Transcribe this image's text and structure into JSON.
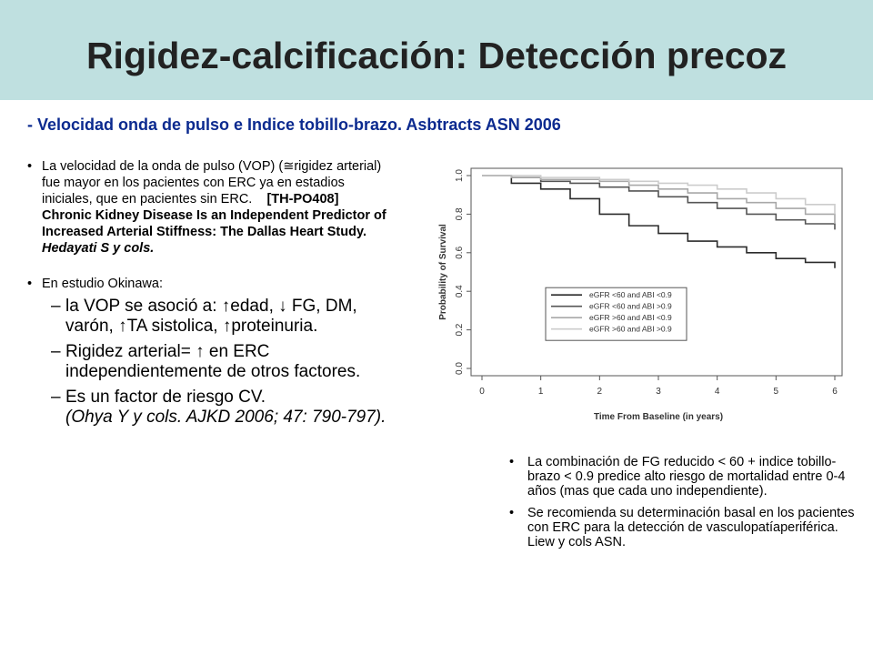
{
  "slide": {
    "title": "Rigidez-calcificación: Detección precoz",
    "subtitle": "- Velocidad onda de pulso e Indice tobillo-brazo. Asbtracts ASN 2006"
  },
  "left": {
    "bullet1": {
      "text": "La velocidad de la onda de pulso (VOP) (≅rigidez arterial) fue mayor en los pacientes con ERC ya en estadios iniciales, que en pacientes sin ERC.",
      "ref": "[TH-PO408] Chronic Kidney Disease Is an Independent Predictor of Increased Arterial Stiffness: The Dallas Heart Study.",
      "authors": "Hedayati S y cols."
    },
    "bullet2": {
      "text": "En estudio Okinawa:",
      "items": [
        "la VOP se asoció a: ↑edad, ↓ FG, DM, varón, ↑TA sistolica, ↑proteinuria.",
        "Rigidez arterial= ↑ en ERC independientemente de otros factores.",
        "Es un factor de riesgo CV.",
        "(Ohya Y y cols. AJKD 2006; 47: 790-797)."
      ],
      "dash": "–"
    }
  },
  "right": {
    "bullets": [
      "La combinación de FG reducido < 60 + indice tobillo-brazo < 0.9 predice alto riesgo de mortalidad entre 0-4 años (mas que cada uno independiente).",
      "Se recomienda su determinación basal en los pacientes con ERC para la detección de vasculopatíaperiférica. Liew y cols ASN."
    ]
  },
  "chart_data": {
    "type": "line",
    "xlabel": "Time From Baseline (in years)",
    "ylabel": "Probability of Survival",
    "xlim": [
      0,
      6
    ],
    "ylim": [
      0,
      1.0
    ],
    "x_ticks": [
      "0",
      "1",
      "2",
      "3",
      "4",
      "5",
      "6"
    ],
    "y_ticks": [
      "0.0",
      "0.2",
      "0.4",
      "0.6",
      "0.8",
      "1.0"
    ],
    "legend_position": "center-right",
    "series": [
      {
        "name": "eGFR <60 and ABI <0.9",
        "color": "#2b2b2b",
        "x": [
          0,
          0.5,
          1,
          1.5,
          2,
          2.5,
          3,
          3.5,
          4,
          4.5,
          5,
          5.5,
          6
        ],
        "y": [
          1.0,
          0.96,
          0.93,
          0.88,
          0.8,
          0.74,
          0.7,
          0.66,
          0.63,
          0.6,
          0.57,
          0.55,
          0.52
        ]
      },
      {
        "name": "eGFR <60 and ABI >0.9",
        "color": "#555555",
        "x": [
          0,
          0.5,
          1,
          1.5,
          2,
          2.5,
          3,
          3.5,
          4,
          4.5,
          5,
          5.5,
          6
        ],
        "y": [
          1.0,
          0.99,
          0.97,
          0.96,
          0.94,
          0.92,
          0.89,
          0.86,
          0.83,
          0.8,
          0.77,
          0.75,
          0.72
        ]
      },
      {
        "name": "eGFR >60 and ABI <0.9",
        "color": "#a8a8a8",
        "x": [
          0,
          0.5,
          1,
          1.5,
          2,
          2.5,
          3,
          3.5,
          4,
          4.5,
          5,
          5.5,
          6
        ],
        "y": [
          1.0,
          0.99,
          0.98,
          0.98,
          0.97,
          0.95,
          0.93,
          0.91,
          0.88,
          0.86,
          0.83,
          0.8,
          0.75
        ]
      },
      {
        "name": "eGFR >60 and ABI >0.9",
        "color": "#cccccc",
        "x": [
          0,
          0.5,
          1,
          1.5,
          2,
          2.5,
          3,
          3.5,
          4,
          4.5,
          5,
          5.5,
          6
        ],
        "y": [
          1.0,
          1.0,
          0.99,
          0.99,
          0.98,
          0.97,
          0.96,
          0.95,
          0.93,
          0.91,
          0.88,
          0.85,
          0.8
        ]
      }
    ]
  }
}
